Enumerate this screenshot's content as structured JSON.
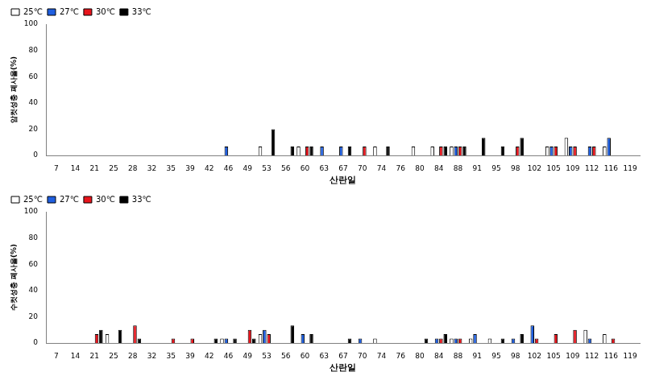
{
  "chart_data": [
    {
      "type": "bar",
      "y_label": "암컷성충 폐사율(%)",
      "x_label": "산란일",
      "categories": [
        "7",
        "14",
        "21",
        "25",
        "28",
        "32",
        "35",
        "39",
        "42",
        "46",
        "49",
        "53",
        "56",
        "60",
        "63",
        "67",
        "70",
        "74",
        "76",
        "80",
        "84",
        "88",
        "91",
        "95",
        "98",
        "102",
        "105",
        "109",
        "112",
        "116",
        "119"
      ],
      "series": [
        {
          "name": "25℃",
          "color": "#ffffff",
          "values": [
            0,
            0,
            0,
            0,
            0,
            0,
            0,
            0,
            0,
            0,
            0,
            6.7,
            0,
            6.7,
            0,
            0,
            0,
            6.7,
            0,
            6.7,
            6.7,
            6.7,
            0,
            0,
            0,
            0,
            6.7,
            13.3,
            0,
            6.7,
            0
          ]
        },
        {
          "name": "27℃",
          "color": "#1f5fe0",
          "values": [
            0,
            0,
            0,
            0,
            0,
            0,
            0,
            0,
            0,
            6.7,
            0,
            0,
            0,
            0,
            6.7,
            6.7,
            0,
            0,
            0,
            0,
            0,
            6.7,
            0,
            0,
            0,
            0,
            6.7,
            6.7,
            6.7,
            13.3,
            0
          ]
        },
        {
          "name": "30℃",
          "color": "#e8141c",
          "values": [
            0,
            0,
            0,
            0,
            0,
            0,
            0,
            0,
            0,
            0,
            0,
            0,
            0,
            6.7,
            0,
            0,
            6.7,
            0,
            0,
            0,
            6.7,
            6.7,
            0,
            0,
            6.7,
            0,
            6.7,
            6.7,
            6.7,
            0,
            0
          ]
        },
        {
          "name": "33℃",
          "color": "#000000",
          "values": [
            0,
            0,
            0,
            0,
            0,
            0,
            0,
            0,
            0,
            0,
            0,
            20,
            6.7,
            6.7,
            0,
            6.7,
            0,
            6.7,
            0,
            0,
            6.7,
            6.7,
            13.3,
            6.7,
            13.3,
            0,
            0,
            0,
            0,
            0,
            0
          ]
        }
      ],
      "ylim": [
        0,
        100
      ],
      "yticks": [
        0,
        20,
        40,
        60,
        80,
        100
      ],
      "grid": false,
      "legend": "upper left"
    },
    {
      "type": "bar",
      "y_label": "수컷성충 폐사율(%)",
      "x_label": "산란일",
      "categories": [
        "7",
        "14",
        "21",
        "25",
        "28",
        "32",
        "35",
        "39",
        "42",
        "46",
        "49",
        "53",
        "56",
        "60",
        "63",
        "67",
        "70",
        "74",
        "76",
        "80",
        "84",
        "88",
        "91",
        "95",
        "98",
        "102",
        "105",
        "109",
        "112",
        "116",
        "119"
      ],
      "series": [
        {
          "name": "25℃",
          "color": "#ffffff",
          "values": [
            0,
            0,
            0,
            6.7,
            0,
            0,
            0,
            0,
            0,
            3.3,
            0,
            6.7,
            0,
            0,
            0,
            0,
            0,
            3.3,
            0,
            0,
            0,
            3.3,
            3.3,
            3.3,
            0,
            0,
            0,
            0,
            10,
            6.7,
            0
          ]
        },
        {
          "name": "27℃",
          "color": "#1f5fe0",
          "values": [
            0,
            0,
            0,
            0,
            0,
            0,
            0,
            0,
            0,
            3.3,
            0,
            10,
            0,
            6.7,
            0,
            0,
            3.3,
            0,
            0,
            0,
            3.3,
            3.3,
            6.7,
            0,
            3.3,
            13.3,
            0,
            0,
            3.3,
            0,
            0
          ]
        },
        {
          "name": "30℃",
          "color": "#e8141c",
          "values": [
            0,
            0,
            6.7,
            0,
            13.3,
            0,
            3.3,
            3.3,
            0,
            0,
            10,
            6.7,
            0,
            0,
            0,
            0,
            0,
            0,
            0,
            0,
            3.3,
            3.3,
            0,
            0,
            0,
            3.3,
            6.7,
            10,
            0,
            3.3,
            0
          ]
        },
        {
          "name": "33℃",
          "color": "#000000",
          "values": [
            0,
            0,
            10,
            10,
            3.3,
            0,
            0,
            0,
            3.3,
            3.3,
            3.3,
            0,
            13.3,
            6.7,
            0,
            3.3,
            0,
            0,
            0,
            3.3,
            6.7,
            0,
            0,
            3.3,
            6.7,
            0,
            0,
            0,
            0,
            0,
            0
          ]
        }
      ],
      "ylim": [
        0,
        100
      ],
      "yticks": [
        0,
        20,
        40,
        60,
        80,
        100
      ],
      "grid": false,
      "legend": "upper left"
    }
  ]
}
